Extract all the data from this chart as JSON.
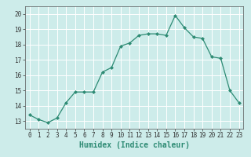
{
  "x": [
    0,
    1,
    2,
    3,
    4,
    5,
    6,
    7,
    8,
    9,
    10,
    11,
    12,
    13,
    14,
    15,
    16,
    17,
    18,
    19,
    20,
    21,
    22,
    23
  ],
  "y": [
    13.4,
    13.1,
    12.9,
    13.2,
    14.2,
    14.9,
    14.9,
    14.9,
    16.2,
    16.5,
    17.9,
    18.1,
    18.6,
    18.7,
    18.7,
    18.6,
    19.9,
    19.1,
    18.5,
    18.4,
    17.2,
    17.1,
    15.0,
    14.2
  ],
  "line_color": "#2e8b74",
  "marker": "D",
  "markersize": 2.0,
  "linewidth": 0.9,
  "xlabel": "Humidex (Indice chaleur)",
  "xlabel_fontsize": 7,
  "xlabel_bold": true,
  "ylim": [
    12.5,
    20.5
  ],
  "xlim": [
    -0.5,
    23.5
  ],
  "yticks": [
    13,
    14,
    15,
    16,
    17,
    18,
    19,
    20
  ],
  "xticks": [
    0,
    1,
    2,
    3,
    4,
    5,
    6,
    7,
    8,
    9,
    10,
    11,
    12,
    13,
    14,
    15,
    16,
    17,
    18,
    19,
    20,
    21,
    22,
    23
  ],
  "background_color": "#cdecea",
  "grid_color": "#ffffff",
  "grid_linewidth": 0.7,
  "tick_fontsize": 5.5,
  "figure_bg": "#cdecea",
  "spine_color": "#555555"
}
